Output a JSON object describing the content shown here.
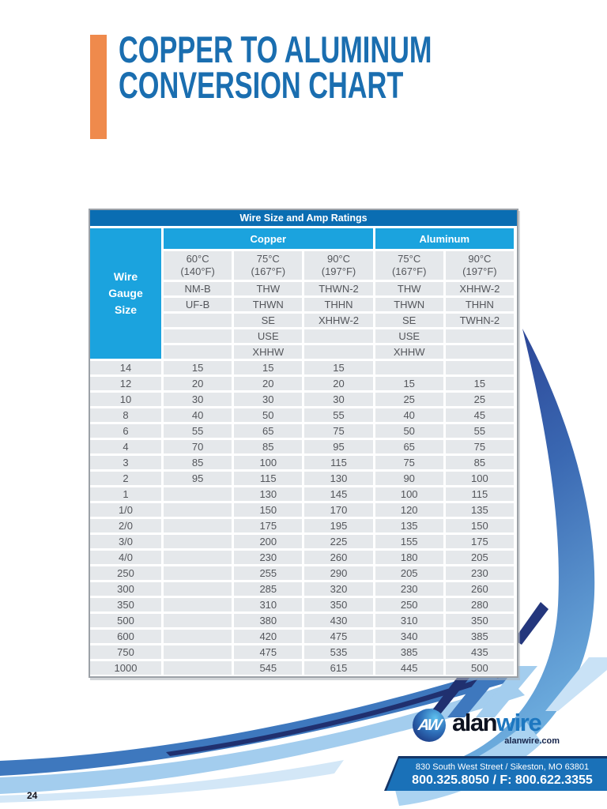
{
  "page": {
    "number": "24"
  },
  "title": {
    "line1": "COPPER TO ALUMINUM",
    "line2": "CONVERSION CHART"
  },
  "colors": {
    "accent_orange": "#EF8A4C",
    "title_blue": "#1A6EB0",
    "table_bar_blue": "#0A6DB2",
    "table_light_blue": "#1BA3DE",
    "cell_gray": "#E5E8EB",
    "banner_blue": "#1A71B8",
    "swoosh_navy": "#20306F",
    "swoosh_medium": "#3E78BE",
    "swoosh_light": "#A3CDEE"
  },
  "table": {
    "title": "Wire Size and Amp Ratings",
    "wire_gauge_lines": [
      "Wire",
      "Gauge",
      "Size"
    ],
    "groups": [
      {
        "label": "Copper"
      },
      {
        "label": "Aluminum"
      }
    ],
    "columns": [
      {
        "temp": "60°C",
        "fahrenheit": "(140°F)",
        "types": [
          "NM-B",
          "UF-B",
          "",
          "",
          ""
        ]
      },
      {
        "temp": "75°C",
        "fahrenheit": "(167°F)",
        "types": [
          "THW",
          "THWN",
          "SE",
          "USE",
          "XHHW"
        ]
      },
      {
        "temp": "90°C",
        "fahrenheit": "(197°F)",
        "types": [
          "THWN-2",
          "THHN",
          "XHHW-2",
          "",
          ""
        ]
      },
      {
        "temp": "75°C",
        "fahrenheit": "(167°F)",
        "types": [
          "THW",
          "THWN",
          "SE",
          "USE",
          "XHHW"
        ]
      },
      {
        "temp": "90°C",
        "fahrenheit": "(197°F)",
        "types": [
          "XHHW-2",
          "THHN",
          "TWHN-2",
          "",
          ""
        ]
      }
    ],
    "rows": [
      [
        "14",
        "15",
        "15",
        "15",
        "",
        ""
      ],
      [
        "12",
        "20",
        "20",
        "20",
        "15",
        "15"
      ],
      [
        "10",
        "30",
        "30",
        "30",
        "25",
        "25"
      ],
      [
        "8",
        "40",
        "50",
        "55",
        "40",
        "45"
      ],
      [
        "6",
        "55",
        "65",
        "75",
        "50",
        "55"
      ],
      [
        "4",
        "70",
        "85",
        "95",
        "65",
        "75"
      ],
      [
        "3",
        "85",
        "100",
        "115",
        "75",
        "85"
      ],
      [
        "2",
        "95",
        "115",
        "130",
        "90",
        "100"
      ],
      [
        "1",
        "",
        "130",
        "145",
        "100",
        "115"
      ],
      [
        "1/0",
        "",
        "150",
        "170",
        "120",
        "135"
      ],
      [
        "2/0",
        "",
        "175",
        "195",
        "135",
        "150"
      ],
      [
        "3/0",
        "",
        "200",
        "225",
        "155",
        "175"
      ],
      [
        "4/0",
        "",
        "230",
        "260",
        "180",
        "205"
      ],
      [
        "250",
        "",
        "255",
        "290",
        "205",
        "230"
      ],
      [
        "300",
        "",
        "285",
        "320",
        "230",
        "260"
      ],
      [
        "350",
        "",
        "310",
        "350",
        "250",
        "280"
      ],
      [
        "500",
        "",
        "380",
        "430",
        "310",
        "350"
      ],
      [
        "600",
        "",
        "420",
        "475",
        "340",
        "385"
      ],
      [
        "750",
        "",
        "475",
        "535",
        "385",
        "435"
      ],
      [
        "1000",
        "",
        "545",
        "615",
        "445",
        "500"
      ]
    ]
  },
  "footer": {
    "logo": {
      "monogram": "AW",
      "name_part1": "alan",
      "name_part2": "wire",
      "website": "alanwire.com"
    },
    "address": "830 South West Street / Sikeston, MO 63801",
    "phone": "800.325.8050 / F: 800.622.3355"
  }
}
